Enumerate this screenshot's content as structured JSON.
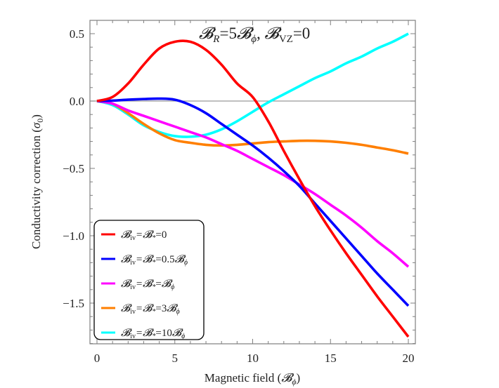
{
  "chart_data": {
    "type": "line",
    "title": "𝓑R=5𝓑ϕ, 𝓑VZ=0",
    "title_parts": {
      "b1": "𝓑",
      "sub1": "R",
      "eq1": "=5",
      "b2": "𝓑",
      "sub2": "ϕ",
      "sep": ", ",
      "b3": "𝓑",
      "sub3": "VZ",
      "eq3": "=0"
    },
    "xlabel": "Magnetic field (𝓑ϕ)",
    "xlabel_parts": {
      "text": "Magnetic field (",
      "b": "𝓑",
      "sub": "ϕ",
      "close": ")"
    },
    "ylabel": "Conductivity correction (σ0)",
    "ylabel_parts": {
      "text": "Conductivity correction (",
      "sym": "σ",
      "sub": "0",
      "close": ")"
    },
    "xlim": [
      -0.5,
      20.5
    ],
    "ylim": [
      -1.95,
      0.62
    ],
    "xticks": [
      0,
      5,
      10,
      15,
      20
    ],
    "xtick_labels": [
      "0",
      "5",
      "10",
      "15",
      "20"
    ],
    "yticks": [
      0.5,
      0.0,
      -0.5,
      -1.0,
      -1.5
    ],
    "ytick_labels": [
      "0.5",
      "0.0",
      "−0.5",
      "−1.0",
      "−1.5"
    ],
    "grid": false,
    "zero_line": true,
    "legend_position": "bottom-left",
    "x": [
      0,
      1,
      2,
      3,
      4,
      5,
      6,
      7,
      8,
      9,
      10,
      11,
      12,
      13,
      14,
      15,
      16,
      17,
      18,
      19,
      20
    ],
    "series": [
      {
        "name": "𝓑iv=𝓑*=0",
        "legend": {
          "pre": "=",
          "val": "0",
          "phi": false
        },
        "color": "#ff0000",
        "values": [
          0,
          0.03,
          0.13,
          0.27,
          0.39,
          0.44,
          0.44,
          0.38,
          0.27,
          0.13,
          0.03,
          -0.15,
          -0.37,
          -0.58,
          -0.78,
          -0.96,
          -1.13,
          -1.29,
          -1.45,
          -1.6,
          -1.75
        ]
      },
      {
        "name": "𝓑iv=𝓑*=0.5𝓑ϕ",
        "legend": {
          "pre": "=",
          "val": "0.5",
          "phi": true
        },
        "color": "#0000ff",
        "values": [
          0,
          0.003,
          0.01,
          0.015,
          0.018,
          0.01,
          -0.03,
          -0.09,
          -0.17,
          -0.25,
          -0.33,
          -0.42,
          -0.52,
          -0.63,
          -0.76,
          -0.89,
          -1.02,
          -1.15,
          -1.28,
          -1.4,
          -1.52
        ]
      },
      {
        "name": "𝓑iv=𝓑*=𝓑ϕ",
        "legend": {
          "pre": "=",
          "val": "",
          "phi": true
        },
        "color": "#ff00ff",
        "values": [
          0,
          -0.02,
          -0.07,
          -0.11,
          -0.15,
          -0.19,
          -0.23,
          -0.27,
          -0.32,
          -0.37,
          -0.43,
          -0.49,
          -0.55,
          -0.62,
          -0.69,
          -0.77,
          -0.85,
          -0.94,
          -1.04,
          -1.13,
          -1.23
        ]
      },
      {
        "name": "𝓑iv=𝓑*=3𝓑ϕ",
        "legend": {
          "pre": "=",
          "val": "3",
          "phi": true
        },
        "color": "#ff7f00",
        "values": [
          0,
          -0.02,
          -0.09,
          -0.17,
          -0.24,
          -0.29,
          -0.31,
          -0.325,
          -0.33,
          -0.325,
          -0.315,
          -0.305,
          -0.3,
          -0.295,
          -0.295,
          -0.3,
          -0.31,
          -0.325,
          -0.345,
          -0.365,
          -0.39
        ]
      },
      {
        "name": "𝓑iv=𝓑*=10𝓑ϕ",
        "legend": {
          "pre": "=",
          "val": "10",
          "phi": true
        },
        "color": "#00ffff",
        "values": [
          0,
          -0.03,
          -0.1,
          -0.18,
          -0.23,
          -0.26,
          -0.265,
          -0.25,
          -0.21,
          -0.15,
          -0.08,
          -0.01,
          0.05,
          0.11,
          0.17,
          0.22,
          0.28,
          0.33,
          0.39,
          0.44,
          0.5
        ]
      }
    ]
  }
}
